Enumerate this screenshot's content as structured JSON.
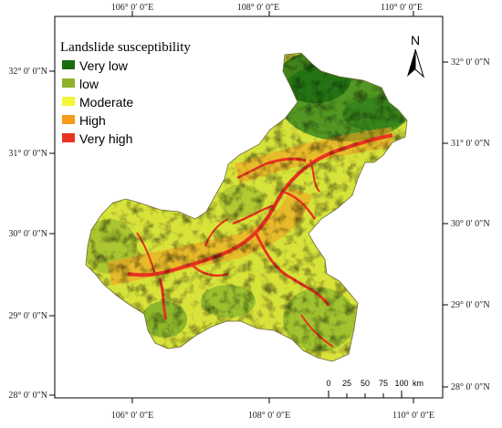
{
  "legend": {
    "title": "Landslide susceptibility",
    "items": [
      {
        "label": "Very low",
        "color": "#1a6b12"
      },
      {
        "label": "low",
        "color": "#8db32a"
      },
      {
        "label": "Moderate",
        "color": "#f5f53a"
      },
      {
        "label": "High",
        "color": "#f59a1e"
      },
      {
        "label": "Very high",
        "color": "#e83420"
      }
    ]
  },
  "north_arrow": {
    "label": "N"
  },
  "longitude_labels": [
    "106° 0′ 0″E",
    "108° 0′ 0″E",
    "110° 0′ 0″E"
  ],
  "latitude_labels": [
    "32° 0′ 0″N",
    "31° 0′ 0″N",
    "30° 0′ 0″N",
    "29° 0′ 0″N",
    "28° 0′ 0″N"
  ],
  "scale_bar": {
    "ticks": [
      "0",
      "25",
      "50",
      "75",
      "100"
    ],
    "unit": "km"
  }
}
